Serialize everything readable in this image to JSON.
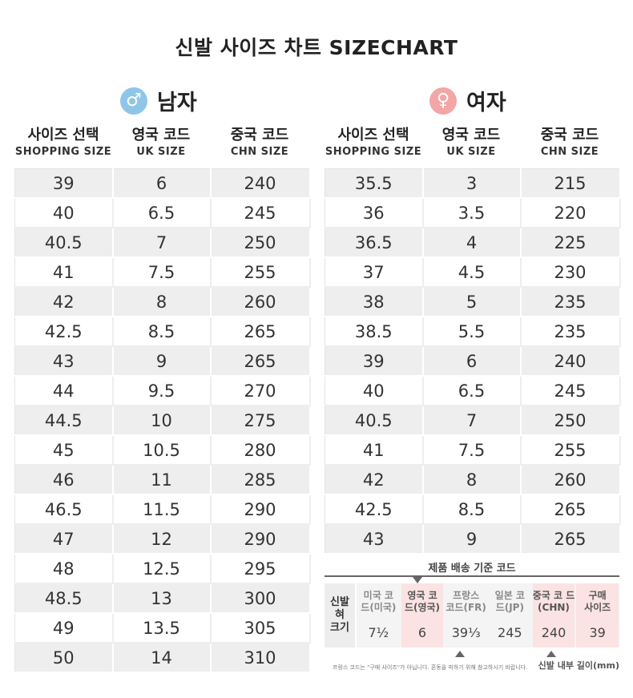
{
  "title": "신발 사이즈 차트 SIZECHART",
  "colors": {
    "male": "#8fc6e8",
    "female": "#f2a6a6",
    "stripe": "#eeeeee",
    "highlight": "#fbe3e3"
  },
  "men": {
    "label": "남자",
    "icon": "male-icon",
    "symbol": "♂",
    "headers": [
      {
        "ko": "사이즈 선택",
        "en": "SHOPPING SIZE"
      },
      {
        "ko": "영국 코드",
        "en": "UK SIZE"
      },
      {
        "ko": "중국 코드",
        "en": "CHN SIZE"
      }
    ],
    "rows": [
      [
        "39",
        "6",
        "240"
      ],
      [
        "40",
        "6.5",
        "245"
      ],
      [
        "40.5",
        "7",
        "250"
      ],
      [
        "41",
        "7.5",
        "255"
      ],
      [
        "42",
        "8",
        "260"
      ],
      [
        "42.5",
        "8.5",
        "265"
      ],
      [
        "43",
        "9",
        "265"
      ],
      [
        "44",
        "9.5",
        "270"
      ],
      [
        "44.5",
        "10",
        "275"
      ],
      [
        "45",
        "10.5",
        "280"
      ],
      [
        "46",
        "11",
        "285"
      ],
      [
        "46.5",
        "11.5",
        "290"
      ],
      [
        "47",
        "12",
        "290"
      ],
      [
        "48",
        "12.5",
        "295"
      ],
      [
        "48.5",
        "13",
        "300"
      ],
      [
        "49",
        "13.5",
        "305"
      ],
      [
        "50",
        "14",
        "310"
      ]
    ]
  },
  "women": {
    "label": "여자",
    "icon": "female-icon",
    "symbol": "♀",
    "headers": [
      {
        "ko": "사이즈 선택",
        "en": "SHOPPING SIZE"
      },
      {
        "ko": "영국 코드",
        "en": "UK SIZE"
      },
      {
        "ko": "중국 코드",
        "en": "CHN SIZE"
      }
    ],
    "rows": [
      [
        "35.5",
        "3",
        "215"
      ],
      [
        "36",
        "3.5",
        "220"
      ],
      [
        "36.5",
        "4",
        "225"
      ],
      [
        "37",
        "4.5",
        "230"
      ],
      [
        "38",
        "5",
        "235"
      ],
      [
        "38.5",
        "5.5",
        "235"
      ],
      [
        "39",
        "6",
        "240"
      ],
      [
        "40",
        "6.5",
        "245"
      ],
      [
        "40.5",
        "7",
        "250"
      ],
      [
        "41",
        "7.5",
        "255"
      ],
      [
        "42",
        "8",
        "260"
      ],
      [
        "42.5",
        "8.5",
        "265"
      ],
      [
        "43",
        "9",
        "265"
      ]
    ]
  },
  "reference": {
    "caption": "제품 배송 기준 코드",
    "row_label": "신발\n혀\n크기",
    "columns": [
      {
        "label": "미국 코\n드(미국)",
        "value": "7½",
        "highlight": false
      },
      {
        "label": "영국 코\n드(영국)",
        "value": "6",
        "highlight": true
      },
      {
        "label": "프랑스\n코드(FR)",
        "value": "39⅓",
        "highlight": false
      },
      {
        "label": "일본 코\n드(JP)",
        "value": "245",
        "highlight": false
      },
      {
        "label": "중국 코 드\n(CHN)",
        "value": "240",
        "highlight": true
      },
      {
        "label": "구매\n사이즈",
        "value": "39",
        "highlight": true
      }
    ],
    "note": "프랑스 코드는 \"구매 사이즈\"가 아닙니다. 혼동을 피하기 위해 참고하시기 바랍니다.",
    "unit": "신발 내부 길이(mm)"
  }
}
